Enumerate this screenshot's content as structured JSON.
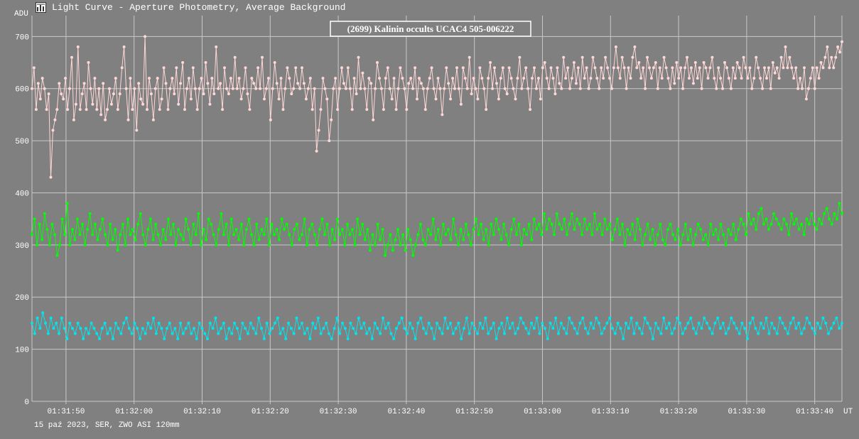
{
  "window": {
    "title": "Light Curve - Aperture Photometry, Average Background",
    "footer": "15 paź 2023, SER, ZWO ASI 120mm"
  },
  "colors": {
    "background": "#808080",
    "grid": "#c8c8c8",
    "axis_text": "#ffffff",
    "title_box_bg": "#808080",
    "title_box_border": "#ffffff"
  },
  "chart_data": {
    "type": "line",
    "title": "(2699) Kalinin occults UCAC4 505-006222",
    "ylabel": "ADU",
    "xunit": "UT",
    "ylim": [
      0,
      740
    ],
    "yticks": [
      0,
      100,
      200,
      300,
      400,
      500,
      600,
      700
    ],
    "xlim_seconds": [
      46,
      165
    ],
    "xticks": [
      {
        "t": 51,
        "label": "01:31:50"
      },
      {
        "t": 61,
        "label": "01:32:00"
      },
      {
        "t": 71,
        "label": "01:32:10"
      },
      {
        "t": 81,
        "label": "01:32:20"
      },
      {
        "t": 91,
        "label": "01:32:30"
      },
      {
        "t": 101,
        "label": "01:32:40"
      },
      {
        "t": 111,
        "label": "01:32:50"
      },
      {
        "t": 121,
        "label": "01:33:00"
      },
      {
        "t": 131,
        "label": "01:33:10"
      },
      {
        "t": 141,
        "label": "01:33:20"
      },
      {
        "t": 151,
        "label": "01:33:30"
      },
      {
        "t": 161,
        "label": "01:33:40"
      }
    ],
    "grid": true,
    "legend": "none",
    "series": [
      {
        "color": "#ffd7d7",
        "x_start": 46,
        "x_end": 165,
        "values": [
          600,
          640,
          560,
          610,
          580,
          620,
          600,
          560,
          590,
          430,
          520,
          540,
          560,
          610,
          590,
          580,
          620,
          560,
          600,
          660,
          540,
          570,
          680,
          560,
          590,
          610,
          560,
          650,
          600,
          570,
          620,
          560,
          600,
          550,
          610,
          540,
          560,
          600,
          570,
          590,
          620,
          560,
          590,
          640,
          680,
          600,
          540,
          620,
          560,
          600,
          520,
          610,
          580,
          570,
          700,
          560,
          620,
          590,
          540,
          600,
          620,
          560,
          580,
          640,
          610,
          560,
          600,
          620,
          590,
          640,
          570,
          610,
          650,
          560,
          600,
          620,
          580,
          640,
          600,
          560,
          600,
          620,
          590,
          650,
          610,
          570,
          620,
          590,
          680,
          600,
          610,
          560,
          640,
          600,
          590,
          620,
          600,
          660,
          600,
          620,
          580,
          600,
          640,
          590,
          560,
          620,
          610,
          600,
          640,
          600,
          660,
          580,
          600,
          620,
          540,
          600,
          650,
          610,
          580,
          620,
          560,
          600,
          640,
          620,
          590,
          600,
          640,
          610,
          600,
          640,
          610,
          580,
          600,
          620,
          560,
          600,
          480,
          520,
          560,
          620,
          600,
          580,
          500,
          540,
          600,
          620,
          560,
          600,
          640,
          610,
          600,
          640,
          600,
          560,
          620,
          590,
          660,
          600,
          630,
          600,
          560,
          620,
          610,
          540,
          600,
          650,
          620,
          600,
          560,
          620,
          640,
          600,
          580,
          620,
          560,
          600,
          640,
          620,
          600,
          560,
          610,
          620,
          600,
          640,
          580,
          620,
          610,
          600,
          560,
          600,
          620,
          640,
          600,
          580,
          620,
          600,
          550,
          600,
          640,
          610,
          580,
          620,
          600,
          640,
          600,
          570,
          640,
          620,
          600,
          660,
          590,
          620,
          600,
          580,
          640,
          620,
          600,
          560,
          620,
          650,
          600,
          640,
          610,
          580,
          620,
          640,
          600,
          590,
          640,
          620,
          600,
          580,
          620,
          660,
          600,
          620,
          640,
          600,
          560,
          620,
          640,
          600,
          620,
          580,
          640,
          650,
          620,
          600,
          640,
          620,
          590,
          640,
          610,
          600,
          660,
          620,
          640,
          600,
          620,
          650,
          610,
          640,
          600,
          660,
          620,
          640,
          600,
          620,
          660,
          640,
          620,
          600,
          640,
          620,
          660,
          640,
          620,
          600,
          640,
          680,
          640,
          620,
          660,
          640,
          600,
          640,
          620,
          660,
          680,
          640,
          650,
          620,
          640,
          600,
          660,
          640,
          620,
          640,
          650,
          600,
          640,
          620,
          660,
          640,
          620,
          600,
          640,
          610,
          650,
          620,
          640,
          600,
          640,
          660,
          620,
          640,
          610,
          650,
          620,
          640,
          600,
          650,
          640,
          620,
          640,
          660,
          620,
          600,
          640,
          620,
          600,
          650,
          640,
          620,
          600,
          640,
          620,
          650,
          640,
          620,
          660,
          640,
          620,
          640,
          600,
          620,
          660,
          640,
          620,
          600,
          640,
          620,
          640,
          600,
          650,
          630,
          640,
          620,
          660,
          640,
          680,
          640,
          660,
          640,
          620,
          640,
          600,
          620,
          600,
          640,
          580,
          600,
          620,
          640,
          600,
          640,
          620,
          650,
          640,
          660,
          680,
          640,
          660,
          640,
          660,
          680,
          670,
          690
        ]
      },
      {
        "color": "#00ff00",
        "x_start": 46,
        "x_end": 165,
        "values": [
          320,
          350,
          300,
          340,
          310,
          360,
          330,
          300,
          340,
          320,
          280,
          300,
          350,
          320,
          380,
          300,
          330,
          310,
          350,
          320,
          340,
          300,
          330,
          360,
          320,
          340,
          310,
          330,
          350,
          320,
          300,
          340,
          310,
          330,
          290,
          320,
          340,
          300,
          350,
          320,
          330,
          310,
          340,
          360,
          320,
          300,
          330,
          350,
          310,
          340,
          320,
          300,
          330,
          310,
          350,
          320,
          340,
          300,
          330,
          320,
          310,
          350,
          330,
          300,
          340,
          320,
          360,
          300,
          330,
          310,
          350,
          340,
          320,
          300,
          330,
          360,
          320,
          340,
          300,
          350,
          320,
          330,
          310,
          340,
          300,
          330,
          350,
          320,
          300,
          340,
          310,
          330,
          320,
          350,
          300,
          340,
          320,
          330,
          310,
          350,
          330,
          340,
          320,
          300,
          330,
          340,
          310,
          320,
          350,
          300,
          330,
          340,
          320,
          300,
          330,
          350,
          320,
          340,
          300,
          330,
          310,
          350,
          320,
          330,
          300,
          340,
          320,
          330,
          300,
          350,
          320,
          340,
          310,
          330,
          290,
          320,
          300,
          340,
          310,
          330,
          280,
          300,
          320,
          290,
          310,
          330,
          300,
          320,
          290,
          330,
          310,
          280,
          300,
          320,
          340,
          310,
          300,
          330,
          320,
          350,
          310,
          330,
          300,
          340,
          320,
          330,
          310,
          350,
          320,
          300,
          330,
          310,
          340,
          320,
          300,
          330,
          350,
          320,
          340,
          310,
          330,
          300,
          340,
          320,
          350,
          330,
          310,
          340,
          320,
          300,
          330,
          350,
          320,
          340,
          300,
          330,
          320,
          340,
          310,
          350,
          330,
          340,
          320,
          360,
          330,
          350,
          340,
          320,
          360,
          340,
          330,
          350,
          320,
          340,
          360,
          330,
          350,
          340,
          320,
          350,
          330,
          340,
          320,
          360,
          330,
          340,
          320,
          350,
          330,
          340,
          310,
          330,
          350,
          320,
          340,
          300,
          330,
          320,
          340,
          310,
          350,
          330,
          300,
          320,
          340,
          310,
          330,
          300,
          320,
          340,
          310,
          300,
          330,
          340,
          320,
          310,
          330,
          300,
          320,
          340,
          310,
          330,
          300,
          320,
          340,
          330,
          310,
          320,
          300,
          340,
          320,
          330,
          310,
          340,
          320,
          300,
          330,
          320,
          340,
          310,
          330,
          350,
          340,
          320,
          360,
          340,
          350,
          330,
          360,
          370,
          340,
          350,
          330,
          340,
          360,
          350,
          340,
          330,
          350,
          340,
          320,
          360,
          340,
          350,
          330,
          340,
          320,
          350,
          340,
          360,
          340,
          330,
          350,
          340,
          360,
          370,
          350,
          340,
          360,
          350,
          380,
          360
        ]
      },
      {
        "color": "#00e5ee",
        "x_start": 46,
        "x_end": 165,
        "values": [
          150,
          130,
          160,
          140,
          170,
          150,
          130,
          160,
          140,
          150,
          130,
          160,
          140,
          120,
          150,
          140,
          130,
          150,
          140,
          120,
          140,
          130,
          150,
          140,
          130,
          120,
          140,
          150,
          130,
          140,
          120,
          150,
          140,
          130,
          150,
          160,
          140,
          130,
          150,
          140,
          120,
          140,
          130,
          150,
          140,
          160,
          130,
          150,
          140,
          120,
          140,
          150,
          130,
          140,
          120,
          150,
          130,
          140,
          150,
          130,
          140,
          120,
          150,
          140,
          130,
          120,
          150,
          140,
          160,
          130,
          140,
          150,
          120,
          140,
          130,
          150,
          140,
          120,
          150,
          140,
          130,
          150,
          140,
          130,
          160,
          140,
          120,
          150,
          130,
          140,
          150,
          160,
          130,
          140,
          120,
          150,
          140,
          130,
          160,
          140,
          150,
          130,
          140,
          120,
          150,
          140,
          160,
          130,
          140,
          150,
          130,
          120,
          140,
          160,
          130,
          150,
          140,
          120,
          150,
          140,
          130,
          160,
          140,
          150,
          130,
          140,
          120,
          150,
          140,
          130,
          160,
          140,
          150,
          130,
          120,
          140,
          150,
          160,
          140,
          130,
          150,
          140,
          120,
          150,
          160,
          140,
          130,
          150,
          140,
          120,
          150,
          140,
          130,
          160,
          140,
          150,
          130,
          140,
          150,
          120,
          140,
          160,
          130,
          150,
          140,
          130,
          150,
          140,
          160,
          130,
          140,
          150,
          120,
          140,
          150,
          130,
          160,
          140,
          150,
          130,
          140,
          160,
          150,
          140,
          130,
          150,
          140,
          160,
          130,
          150,
          140,
          120,
          150,
          140,
          160,
          130,
          150,
          140,
          130,
          160,
          150,
          140,
          130,
          150,
          160,
          140,
          130,
          150,
          140,
          160,
          150,
          130,
          140,
          150,
          160,
          140,
          130,
          150,
          140,
          120,
          150,
          140,
          160,
          130,
          150,
          140,
          130,
          160,
          150,
          140,
          120,
          150,
          140,
          130,
          160,
          140,
          150,
          130,
          140,
          160,
          150,
          130,
          140,
          150,
          160,
          140,
          130,
          150,
          140,
          160,
          150,
          140,
          130,
          150,
          160,
          140,
          150,
          130,
          140,
          160,
          150,
          140,
          130,
          150,
          140,
          120,
          150,
          160,
          140,
          130,
          150,
          140,
          160,
          130,
          150,
          140,
          130,
          160,
          150,
          140,
          130,
          150,
          160,
          140,
          150,
          130,
          140,
          160,
          150,
          140,
          130,
          150,
          140,
          160,
          150,
          130,
          140,
          150,
          160,
          140,
          150
        ]
      }
    ]
  }
}
